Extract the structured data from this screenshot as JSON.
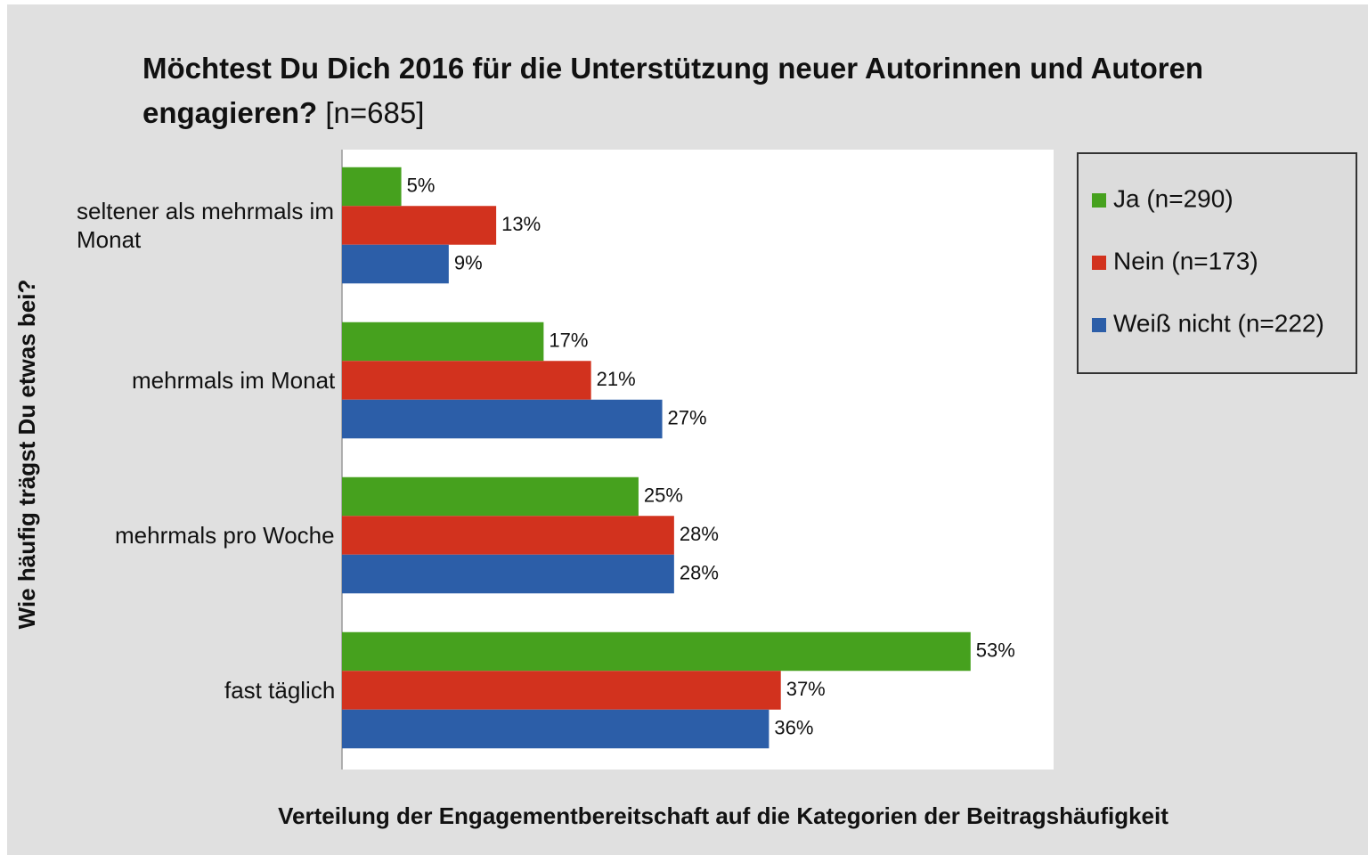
{
  "chart_data": {
    "type": "bar",
    "orientation": "horizontal",
    "title": "Möchtest Du Dich 2016 für die Unterstützung neuer Autorinnen und Autoren engagieren?",
    "title_note": "[n=685]",
    "y_label": "Wie häufig trägst Du etwas bei?",
    "x_label": "Verteilung der Engagementbereitschaft auf die Kategorien der Beitragshäufigkeit",
    "categories": [
      "seltener als mehrmals im Monat",
      "mehrmals im Monat",
      "mehrmals pro Woche",
      "fast täglich"
    ],
    "series": [
      {
        "name": "Ja (n=290)",
        "color": "#46a11e",
        "values": [
          5,
          17,
          25,
          53
        ],
        "value_labels": [
          "5%",
          "17%",
          "25%",
          "53%"
        ]
      },
      {
        "name": "Nein (n=173)",
        "color": "#d2321e",
        "values": [
          13,
          21,
          28,
          37
        ],
        "value_labels": [
          "13%",
          "21%",
          "28%",
          "37%"
        ]
      },
      {
        "name": "Weiß nicht (n=222)",
        "color": "#2c5ea8",
        "values": [
          9,
          27,
          28,
          36
        ],
        "value_labels": [
          "9%",
          "27%",
          "28%",
          "36%"
        ]
      }
    ],
    "xlim": [
      0,
      60
    ],
    "legend": "right"
  }
}
